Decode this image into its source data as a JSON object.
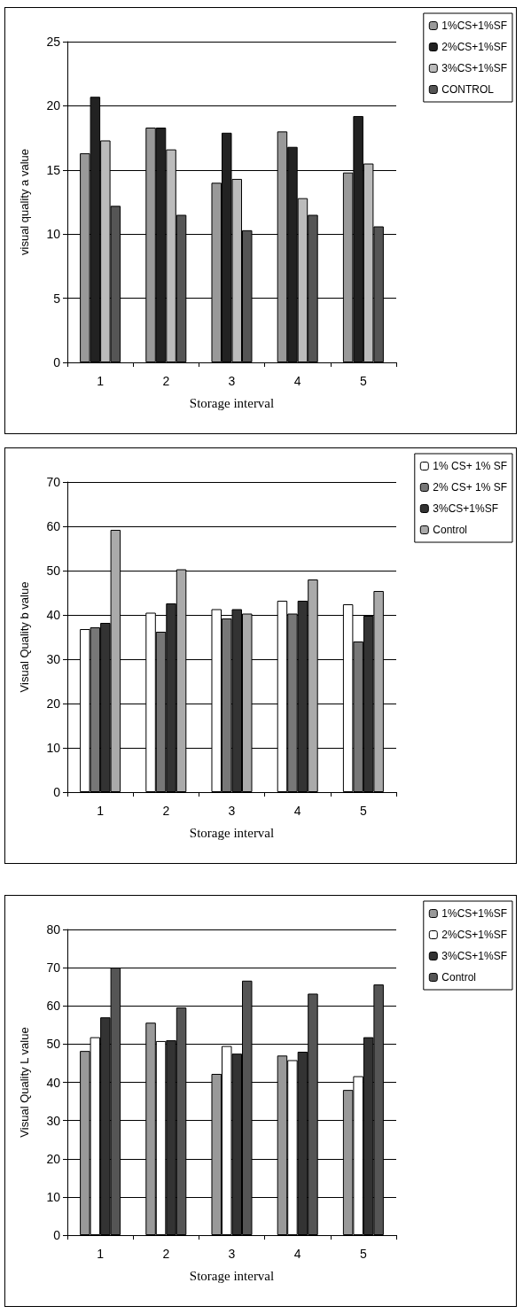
{
  "chart_data": [
    {
      "type": "bar",
      "xlabel": "Storage interval",
      "ylabel": "visual quality a value",
      "categories": [
        "1",
        "2",
        "3",
        "4",
        "5"
      ],
      "ylim": [
        0,
        25
      ],
      "yticks": [
        0,
        5,
        10,
        15,
        20,
        25
      ],
      "grid": "y",
      "legend": "top right",
      "series": [
        {
          "name": "1%CS+1%SF",
          "color": "#999999",
          "values": [
            16.3,
            18.3,
            14.0,
            18.0,
            14.8
          ]
        },
        {
          "name": "2%CS+1%SF",
          "color": "#222222",
          "values": [
            20.7,
            18.3,
            17.9,
            16.8,
            19.2
          ]
        },
        {
          "name": "3%CS+1%SF",
          "color": "#bbbbbb",
          "values": [
            17.3,
            16.6,
            14.3,
            12.8,
            15.5
          ]
        },
        {
          "name": "CONTROL",
          "color": "#555555",
          "values": [
            12.2,
            11.5,
            10.3,
            11.5,
            10.6
          ]
        }
      ]
    },
    {
      "type": "bar",
      "xlabel": "Storage interval",
      "ylabel": "Visual Quality b value",
      "categories": [
        "1",
        "2",
        "3",
        "4",
        "5"
      ],
      "ylim": [
        0,
        70
      ],
      "yticks": [
        0,
        10,
        20,
        30,
        40,
        50,
        60,
        70
      ],
      "grid": "y",
      "legend": "top right",
      "series": [
        {
          "name": "1% CS+ 1% SF",
          "color": "#ffffff",
          "values": [
            36.8,
            40.5,
            41.3,
            43.2,
            42.4
          ]
        },
        {
          "name": "2% CS+ 1% SF",
          "color": "#777777",
          "values": [
            37.2,
            36.2,
            39.2,
            40.3,
            34.0
          ]
        },
        {
          "name": "3%CS+1%SF",
          "color": "#333333",
          "values": [
            38.2,
            42.6,
            41.3,
            43.2,
            39.8
          ]
        },
        {
          "name": "Control",
          "color": "#aaaaaa",
          "values": [
            59.2,
            50.3,
            40.3,
            48.0,
            45.4
          ]
        }
      ]
    },
    {
      "type": "bar",
      "xlabel": "Storage interval",
      "ylabel": "Visual Quality L value",
      "categories": [
        "1",
        "2",
        "3",
        "4",
        "5"
      ],
      "ylim": [
        0,
        80
      ],
      "yticks": [
        0,
        10,
        20,
        30,
        40,
        50,
        60,
        70,
        80
      ],
      "grid": "y",
      "legend": "top right",
      "series": [
        {
          "name": "1%CS+1%SF",
          "color": "#999999",
          "values": [
            48.2,
            55.6,
            42.2,
            47.0,
            38.0
          ]
        },
        {
          "name": "2%CS+1%SF",
          "color": "#ffffff",
          "values": [
            51.8,
            50.8,
            49.5,
            45.8,
            41.6
          ]
        },
        {
          "name": "3%CS+1%SF",
          "color": "#333333",
          "values": [
            57.0,
            51.0,
            47.5,
            48.0,
            51.8
          ]
        },
        {
          "name": "Control",
          "color": "#555555",
          "values": [
            70.0,
            59.6,
            66.6,
            63.2,
            65.6
          ]
        }
      ]
    }
  ]
}
